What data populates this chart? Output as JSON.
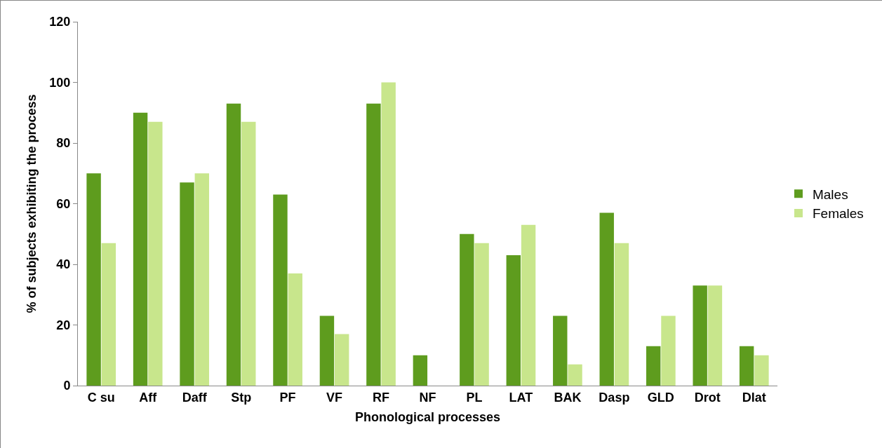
{
  "chart_data": {
    "type": "bar",
    "xlabel": "Phonological processes",
    "ylabel": "% of subjects exhibiting the process",
    "categories": [
      "C su",
      "Aff",
      "Daff",
      "Stp",
      "PF",
      "VF",
      "RF",
      "NF",
      "PL",
      "LAT",
      "BAK",
      "Dasp",
      "GLD",
      "Drot",
      "Dlat"
    ],
    "series": [
      {
        "name": "Males",
        "color": "#5e9c1e",
        "values": [
          70,
          90,
          67,
          93,
          63,
          23,
          93,
          10,
          50,
          43,
          23,
          57,
          13,
          33,
          13
        ]
      },
      {
        "name": "Females",
        "color": "#c8e68c",
        "values": [
          47,
          87,
          70,
          87,
          37,
          17,
          100,
          0,
          47,
          53,
          7,
          47,
          23,
          33,
          10
        ]
      }
    ],
    "ylim": [
      0,
      120
    ],
    "yticks": [
      0,
      20,
      40,
      60,
      80,
      100,
      120
    ],
    "grid": false,
    "legend": "right"
  }
}
